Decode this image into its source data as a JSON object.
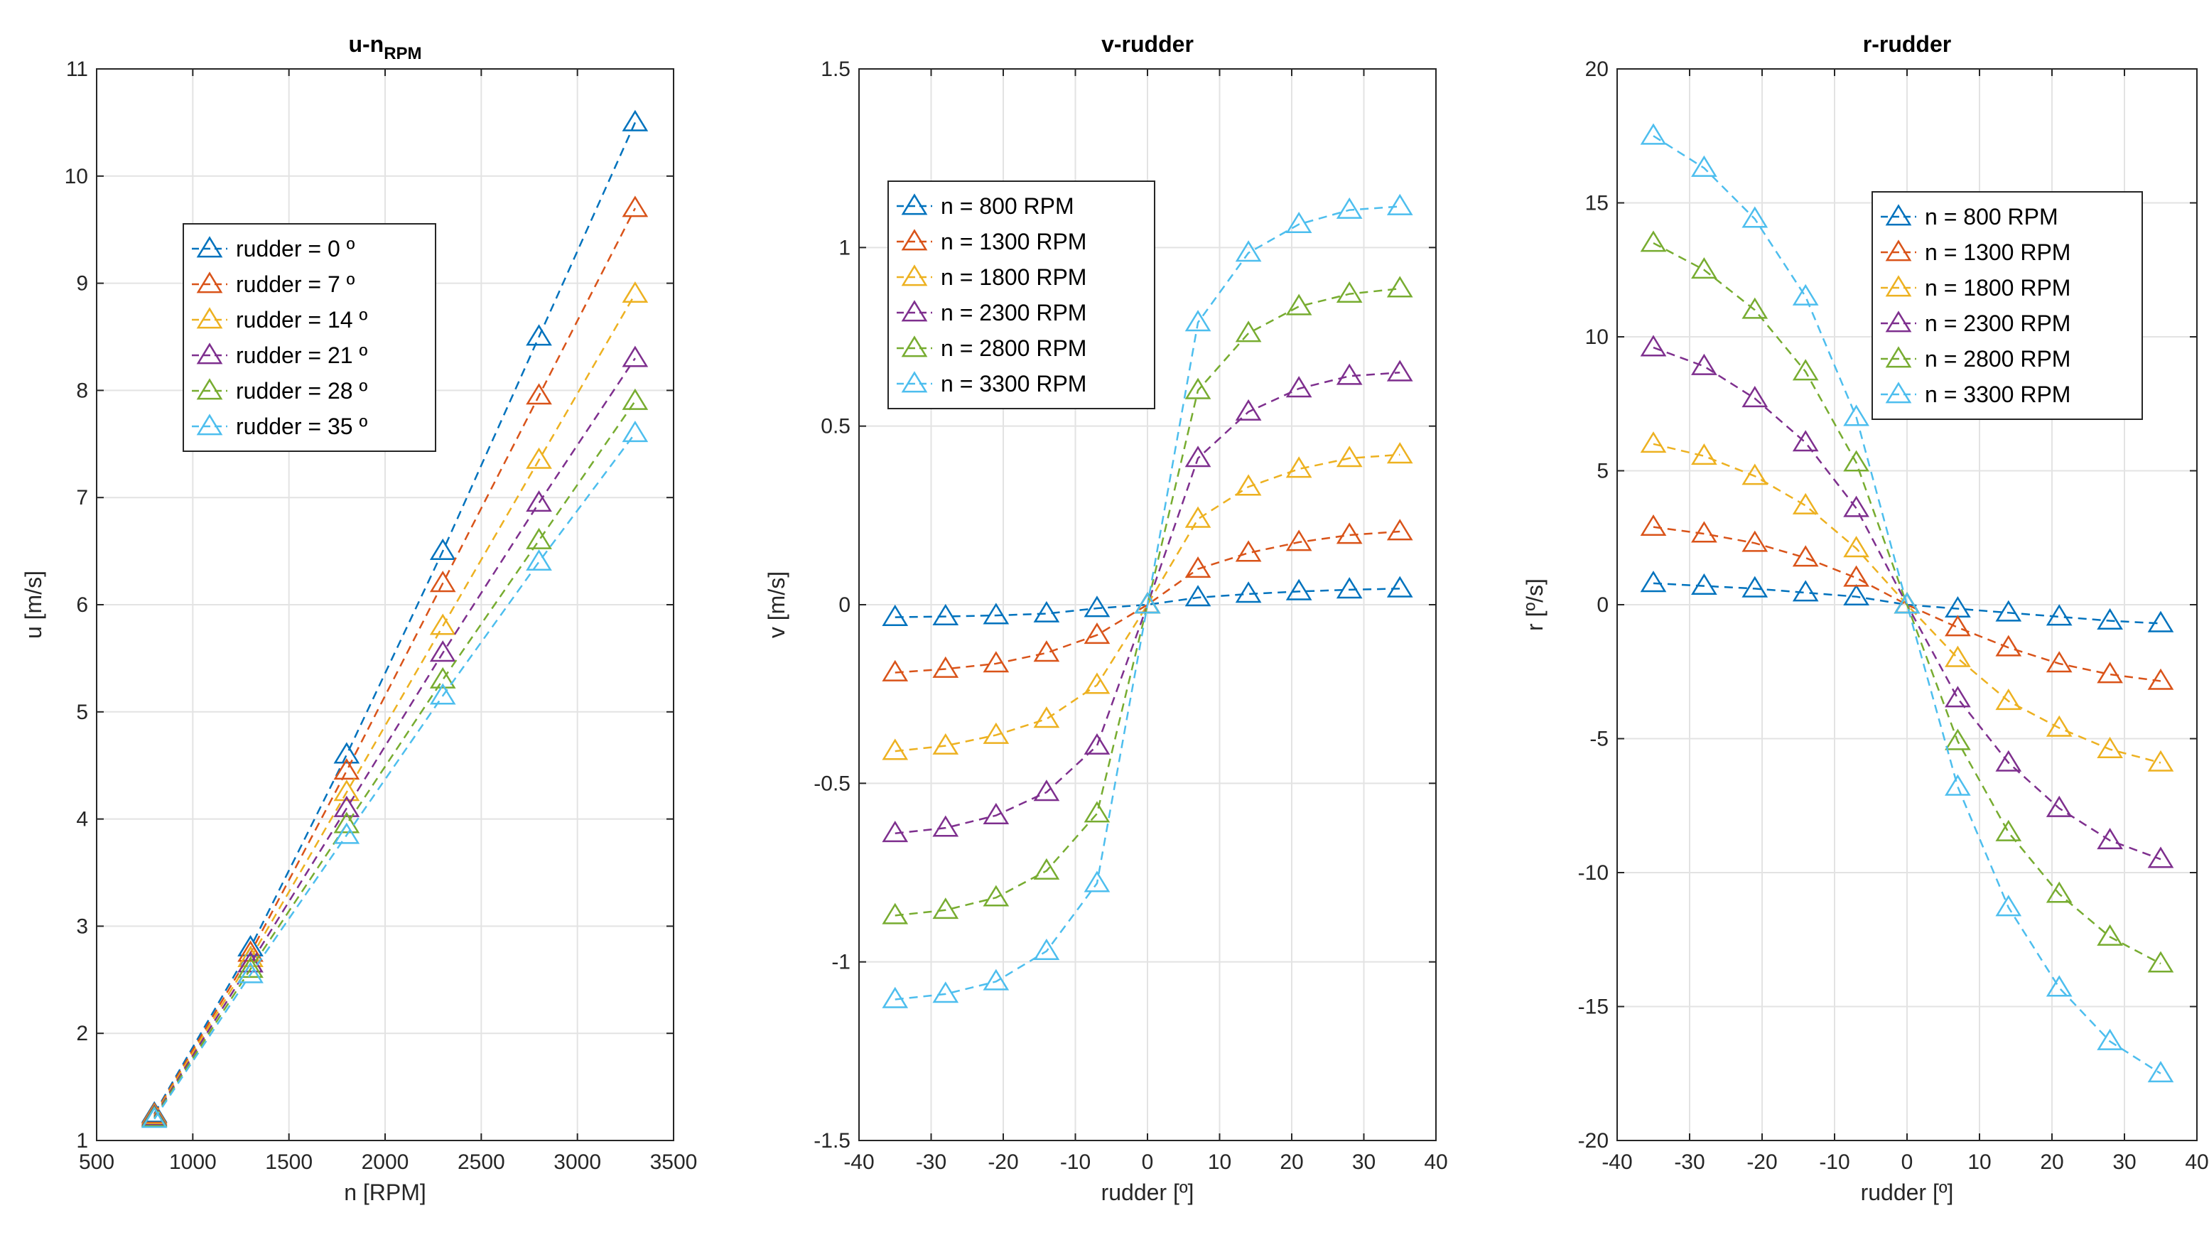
{
  "colors": [
    "#0072BD",
    "#D95319",
    "#EDB120",
    "#7E2F8E",
    "#77AC30",
    "#4DBEEE"
  ],
  "chart_data": [
    {
      "type": "line",
      "title": "u-n",
      "title_sub": "RPM",
      "xlabel": "n [RPM]",
      "ylabel": "u [m/s]",
      "xlim": [
        500,
        3500
      ],
      "ylim": [
        1,
        11
      ],
      "xticks": [
        500,
        1000,
        1500,
        2000,
        2500,
        3000,
        3500
      ],
      "yticks": [
        1,
        2,
        3,
        4,
        5,
        6,
        7,
        8,
        9,
        10,
        11
      ],
      "x": [
        800,
        1300,
        1800,
        2300,
        2800,
        3300
      ],
      "legend_position": "upper-left",
      "series": [
        {
          "name": "rudder = 0 º",
          "values": [
            1.25,
            2.8,
            4.6,
            6.5,
            8.5,
            10.5
          ]
        },
        {
          "name": "rudder = 7 º",
          "values": [
            1.24,
            2.75,
            4.45,
            6.2,
            7.95,
            9.7
          ]
        },
        {
          "name": "rudder = 14 º",
          "values": [
            1.23,
            2.7,
            4.25,
            5.8,
            7.35,
            8.9
          ]
        },
        {
          "name": "rudder = 21 º",
          "values": [
            1.22,
            2.65,
            4.1,
            5.55,
            6.95,
            8.3
          ]
        },
        {
          "name": "rudder = 28 º",
          "values": [
            1.21,
            2.6,
            3.95,
            5.3,
            6.6,
            7.9
          ]
        },
        {
          "name": "rudder = 35 º",
          "values": [
            1.2,
            2.55,
            3.85,
            5.15,
            6.4,
            7.6
          ]
        }
      ]
    },
    {
      "type": "line",
      "title": "v-rudder",
      "title_sub": "",
      "xlabel": "rudder [º]",
      "ylabel": "v [m/s]",
      "xlim": [
        -40,
        40
      ],
      "ylim": [
        -1.5,
        1.5
      ],
      "xticks": [
        -40,
        -30,
        -20,
        -10,
        0,
        10,
        20,
        30,
        40
      ],
      "yticks": [
        -1.5,
        -1,
        -0.5,
        0,
        0.5,
        1,
        1.5
      ],
      "x": [
        -35,
        -28,
        -21,
        -14,
        -7,
        0,
        7,
        14,
        21,
        28,
        35
      ],
      "legend_position": "upper-left",
      "series": [
        {
          "name": "n = 800 RPM",
          "values": [
            -0.035,
            -0.033,
            -0.03,
            -0.025,
            -0.01,
            0,
            0.02,
            0.03,
            0.037,
            0.042,
            0.045
          ]
        },
        {
          "name": "n = 1300 RPM",
          "values": [
            -0.19,
            -0.18,
            -0.165,
            -0.135,
            -0.085,
            0,
            0.1,
            0.145,
            0.175,
            0.195,
            0.205
          ]
        },
        {
          "name": "n = 1800 RPM",
          "values": [
            -0.41,
            -0.395,
            -0.365,
            -0.32,
            -0.225,
            0,
            0.24,
            0.33,
            0.38,
            0.41,
            0.42
          ]
        },
        {
          "name": "n = 2300 RPM",
          "values": [
            -0.64,
            -0.625,
            -0.59,
            -0.525,
            -0.395,
            0,
            0.41,
            0.54,
            0.605,
            0.64,
            0.65
          ]
        },
        {
          "name": "n = 2800 RPM",
          "values": [
            -0.87,
            -0.855,
            -0.82,
            -0.745,
            -0.585,
            0,
            0.6,
            0.76,
            0.835,
            0.87,
            0.885
          ]
        },
        {
          "name": "n = 3300 RPM",
          "values": [
            -1.105,
            -1.09,
            -1.055,
            -0.97,
            -0.78,
            0,
            0.79,
            0.985,
            1.065,
            1.105,
            1.115
          ]
        }
      ]
    },
    {
      "type": "line",
      "title": "r-rudder",
      "title_sub": "",
      "xlabel": "rudder [º]",
      "ylabel": "r [º/s]",
      "xlim": [
        -40,
        40
      ],
      "ylim": [
        -20,
        20
      ],
      "xticks": [
        -40,
        -30,
        -20,
        -10,
        0,
        10,
        20,
        30,
        40
      ],
      "yticks": [
        -20,
        -15,
        -10,
        -5,
        0,
        5,
        10,
        15,
        20
      ],
      "x": [
        -35,
        -28,
        -21,
        -14,
        -7,
        0,
        7,
        14,
        21,
        28,
        35
      ],
      "legend_position": "upper-right",
      "series": [
        {
          "name": "n = 800 RPM",
          "values": [
            0.8,
            0.7,
            0.6,
            0.45,
            0.3,
            0,
            -0.15,
            -0.3,
            -0.45,
            -0.6,
            -0.7
          ]
        },
        {
          "name": "n = 1300 RPM",
          "values": [
            2.9,
            2.65,
            2.3,
            1.75,
            1.0,
            0,
            -0.85,
            -1.6,
            -2.2,
            -2.6,
            -2.85
          ]
        },
        {
          "name": "n = 1800 RPM",
          "values": [
            6.0,
            5.55,
            4.8,
            3.7,
            2.1,
            0,
            -2.0,
            -3.6,
            -4.6,
            -5.4,
            -5.9
          ]
        },
        {
          "name": "n = 2300 RPM",
          "values": [
            9.6,
            8.9,
            7.7,
            6.05,
            3.6,
            0,
            -3.5,
            -5.9,
            -7.6,
            -8.8,
            -9.5
          ]
        },
        {
          "name": "n = 2800 RPM",
          "values": [
            13.5,
            12.5,
            11.0,
            8.7,
            5.3,
            0,
            -5.1,
            -8.5,
            -10.8,
            -12.4,
            -13.4
          ]
        },
        {
          "name": "n = 3300 RPM",
          "values": [
            17.5,
            16.3,
            14.4,
            11.5,
            7.0,
            0,
            -6.8,
            -11.3,
            -14.3,
            -16.3,
            -17.5
          ]
        }
      ]
    }
  ]
}
